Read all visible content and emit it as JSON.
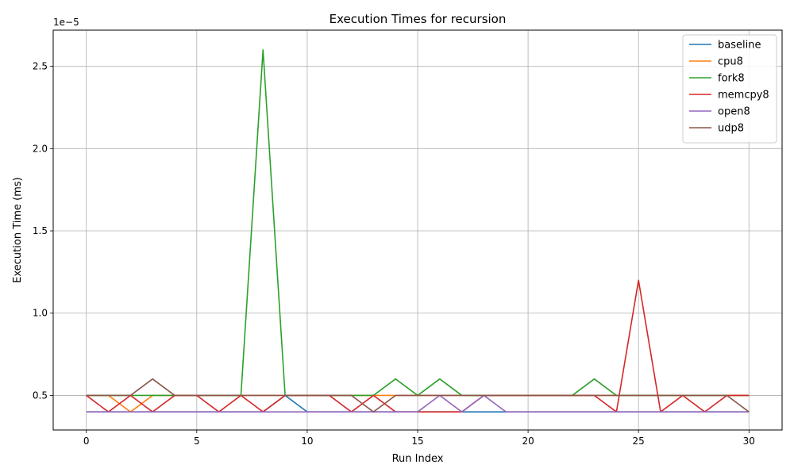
{
  "chart_data": {
    "type": "line",
    "title": "Execution Times for recursion",
    "xlabel": "Run Index",
    "ylabel": "Execution Time (ms)",
    "offset_text": "1e−5",
    "xlim": [
      -1.5,
      31.5
    ],
    "ylim": [
      2.9e-06,
      2.72e-05
    ],
    "grid": true,
    "legend_position": "top-right",
    "x": [
      0,
      1,
      2,
      3,
      4,
      5,
      6,
      7,
      8,
      9,
      10,
      11,
      12,
      13,
      14,
      15,
      16,
      17,
      18,
      19,
      20,
      21,
      22,
      23,
      24,
      25,
      26,
      27,
      28,
      29,
      30
    ],
    "xticks": [
      0,
      5,
      10,
      15,
      20,
      25,
      30
    ],
    "xtick_labels": [
      "0",
      "5",
      "10",
      "15",
      "20",
      "25",
      "30"
    ],
    "yticks": [
      5e-06,
      1e-05,
      1.5e-05,
      2e-05,
      2.5e-05
    ],
    "ytick_labels": [
      "0.5",
      "1.0",
      "1.5",
      "2.0",
      "2.5"
    ],
    "series": [
      {
        "name": "baseline",
        "color": "#1f77b4",
        "values": [
          4e-06,
          4e-06,
          4e-06,
          4e-06,
          4e-06,
          4e-06,
          4e-06,
          4e-06,
          4e-06,
          5e-06,
          4e-06,
          4e-06,
          4e-06,
          4e-06,
          4e-06,
          4e-06,
          4e-06,
          4e-06,
          4e-06,
          4e-06,
          4e-06,
          4e-06,
          4e-06,
          4e-06,
          4e-06,
          4e-06,
          4e-06,
          4e-06,
          4e-06,
          4e-06,
          4e-06
        ]
      },
      {
        "name": "cpu8",
        "color": "#ff7f0e",
        "values": [
          5e-06,
          5e-06,
          4e-06,
          5e-06,
          5e-06,
          5e-06,
          5e-06,
          5e-06,
          5e-06,
          5e-06,
          5e-06,
          5e-06,
          5e-06,
          5e-06,
          5e-06,
          5e-06,
          5e-06,
          5e-06,
          5e-06,
          5e-06,
          5e-06,
          5e-06,
          5e-06,
          5e-06,
          5e-06,
          5e-06,
          5e-06,
          5e-06,
          5e-06,
          5e-06,
          5e-06
        ]
      },
      {
        "name": "fork8",
        "color": "#2ca02c",
        "values": [
          5e-06,
          5e-06,
          5e-06,
          5e-06,
          5e-06,
          5e-06,
          5e-06,
          5e-06,
          2.6e-05,
          5e-06,
          5e-06,
          5e-06,
          5e-06,
          5e-06,
          6e-06,
          5e-06,
          6e-06,
          5e-06,
          5e-06,
          5e-06,
          5e-06,
          5e-06,
          5e-06,
          6e-06,
          5e-06,
          5e-06,
          5e-06,
          5e-06,
          5e-06,
          5e-06,
          5e-06
        ]
      },
      {
        "name": "memcpy8",
        "color": "#d62728",
        "values": [
          5e-06,
          4e-06,
          5e-06,
          4e-06,
          5e-06,
          5e-06,
          4e-06,
          5e-06,
          4e-06,
          5e-06,
          5e-06,
          5e-06,
          4e-06,
          5e-06,
          4e-06,
          4e-06,
          4e-06,
          4e-06,
          5e-06,
          5e-06,
          5e-06,
          5e-06,
          5e-06,
          5e-06,
          4e-06,
          1.2e-05,
          4e-06,
          5e-06,
          4e-06,
          5e-06,
          5e-06
        ]
      },
      {
        "name": "open8",
        "color": "#9467bd",
        "values": [
          4e-06,
          4e-06,
          4e-06,
          4e-06,
          4e-06,
          4e-06,
          4e-06,
          4e-06,
          4e-06,
          4e-06,
          4e-06,
          4e-06,
          4e-06,
          4e-06,
          4e-06,
          4e-06,
          5e-06,
          4e-06,
          5e-06,
          4e-06,
          4e-06,
          4e-06,
          4e-06,
          4e-06,
          4e-06,
          4e-06,
          4e-06,
          4e-06,
          4e-06,
          4e-06,
          4e-06
        ]
      },
      {
        "name": "udp8",
        "color": "#8c564b",
        "values": [
          5e-06,
          5e-06,
          5e-06,
          6e-06,
          5e-06,
          5e-06,
          5e-06,
          5e-06,
          5e-06,
          5e-06,
          5e-06,
          5e-06,
          5e-06,
          4e-06,
          5e-06,
          5e-06,
          5e-06,
          5e-06,
          5e-06,
          5e-06,
          5e-06,
          5e-06,
          5e-06,
          5e-06,
          5e-06,
          5e-06,
          5e-06,
          5e-06,
          5e-06,
          5e-06,
          4e-06
        ]
      }
    ]
  }
}
